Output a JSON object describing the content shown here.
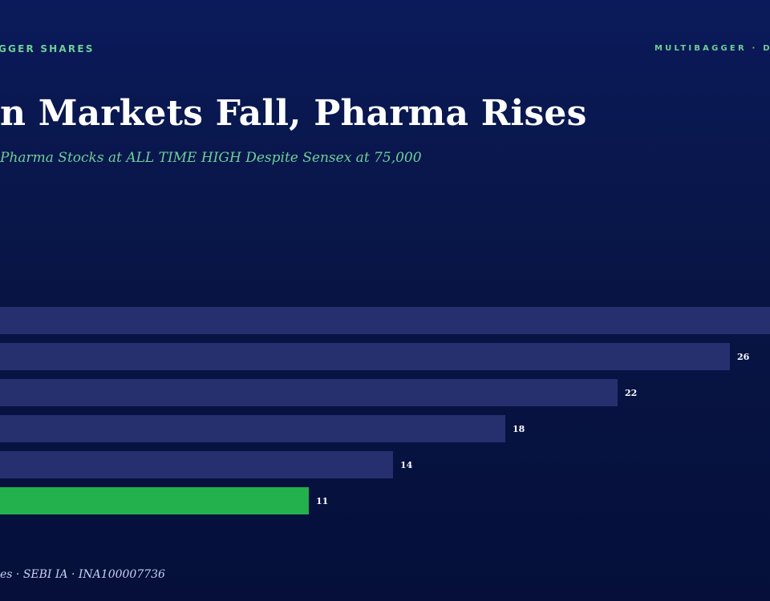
{
  "header": {
    "kicker_left": "GGER SHARES",
    "kicker_right": "MULTIBAGGER · D"
  },
  "title": "n Markets Fall, Pharma Rises",
  "subtitle": "Pharma Stocks at ALL TIME HIGH Despite Sensex at 75,000",
  "footer": "es · SEBI IA · INA100007736",
  "colors": {
    "bar_default": "#27306f",
    "bar_highlight": "#22b14c",
    "value_label": "#ffffff"
  },
  "chart_data": {
    "type": "bar",
    "orientation": "horizontal",
    "title": "n Markets Fall, Pharma Rises",
    "xlabel": "",
    "ylabel": "",
    "categories": [
      "",
      "",
      "",
      "",
      "",
      ""
    ],
    "values": [
      30,
      26,
      22,
      18,
      14,
      11
    ],
    "value_labels": [
      "",
      "26",
      "22",
      "18",
      "14",
      "11"
    ],
    "highlight_index": 5,
    "xlim": [
      0,
      30
    ],
    "grid": false,
    "legend": "none"
  }
}
